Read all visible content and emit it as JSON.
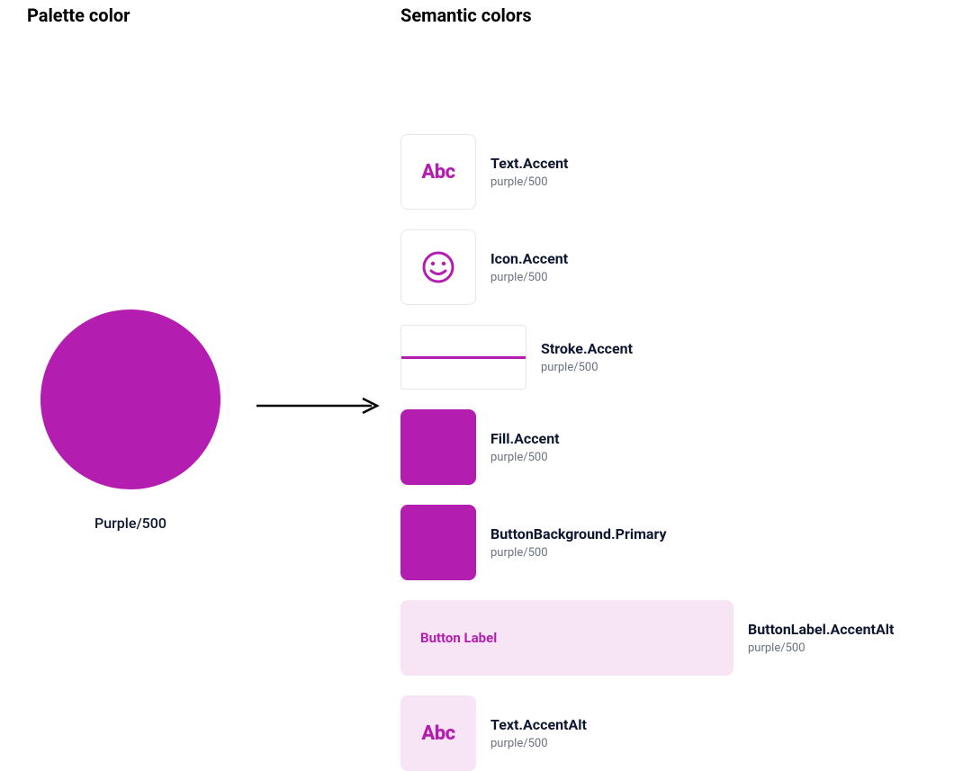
{
  "colors": {
    "accent": "#b41eb0",
    "accentLight": "#f7e4f4",
    "text": "#0f1730",
    "muted": "#6b7280",
    "border": "#e5e7eb",
    "white": "#ffffff",
    "black": "#000000"
  },
  "headings": {
    "palette": "Palette color",
    "semantic": "Semantic colors"
  },
  "palette": {
    "label": "Purple/500",
    "circleColor": "#b41eb0"
  },
  "items": [
    {
      "type": "text-swatch",
      "swatchLabel": "Abc",
      "background": "#ffffff",
      "bordered": true,
      "textColor": "#b41eb0",
      "name": "Text.Accent",
      "token": "purple/500"
    },
    {
      "type": "icon-swatch",
      "background": "#ffffff",
      "bordered": true,
      "iconColor": "#b41eb0",
      "name": "Icon.Accent",
      "token": "purple/500"
    },
    {
      "type": "stroke-swatch",
      "background": "#ffffff",
      "strokeColor": "#b41eb0",
      "name": "Stroke.Accent",
      "token": "purple/500"
    },
    {
      "type": "fill-swatch",
      "background": "#b41eb0",
      "name": "Fill.Accent",
      "token": "purple/500"
    },
    {
      "type": "fill-swatch",
      "background": "#b41eb0",
      "name": "ButtonBackground.Primary",
      "token": "purple/500"
    },
    {
      "type": "button-swatch",
      "background": "#f7e4f4",
      "labelText": "Button Label",
      "labelColor": "#b41eb0",
      "name": "ButtonLabel.AccentAlt",
      "token": "purple/500"
    },
    {
      "type": "text-swatch",
      "swatchLabel": "Abc",
      "background": "#f7e4f4",
      "bordered": false,
      "textColor": "#b41eb0",
      "name": "Text.AccentAlt",
      "token": "purple/500"
    }
  ]
}
